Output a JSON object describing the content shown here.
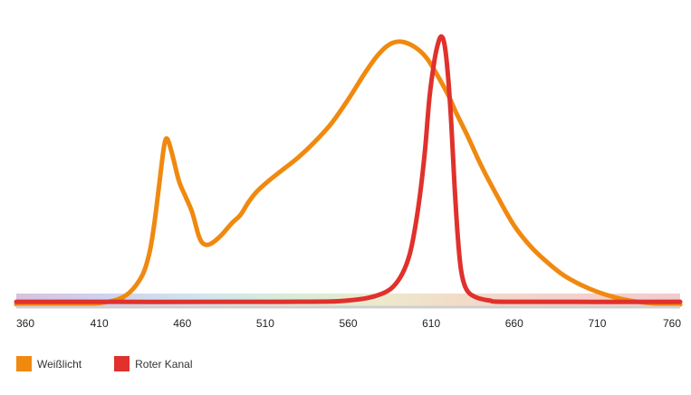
{
  "chart_data": {
    "type": "line",
    "xlabel": "",
    "ylabel": "",
    "xlim": [
      360,
      760
    ],
    "ylim": [
      0,
      1
    ],
    "x_ticks": [
      "360",
      "410",
      "460",
      "510",
      "560",
      "610",
      "660",
      "710",
      "760"
    ],
    "grid": false,
    "legend_position": "bottom-left",
    "spectrum_band": true,
    "series": [
      {
        "name": "Weißlicht",
        "color": "#F0890F",
        "points": [
          [
            360,
            0.0
          ],
          [
            390,
            0.0
          ],
          [
            410,
            0.005
          ],
          [
            425,
            0.03
          ],
          [
            435,
            0.1
          ],
          [
            440,
            0.19
          ],
          [
            443,
            0.3
          ],
          [
            446,
            0.45
          ],
          [
            449,
            0.6
          ],
          [
            451,
            0.63
          ],
          [
            454,
            0.57
          ],
          [
            458,
            0.47
          ],
          [
            462,
            0.41
          ],
          [
            466,
            0.35
          ],
          [
            470,
            0.26
          ],
          [
            473,
            0.23
          ],
          [
            477,
            0.23
          ],
          [
            483,
            0.26
          ],
          [
            490,
            0.31
          ],
          [
            495,
            0.34
          ],
          [
            500,
            0.39
          ],
          [
            505,
            0.43
          ],
          [
            512,
            0.47
          ],
          [
            520,
            0.51
          ],
          [
            530,
            0.56
          ],
          [
            540,
            0.62
          ],
          [
            550,
            0.69
          ],
          [
            560,
            0.78
          ],
          [
            570,
            0.88
          ],
          [
            578,
            0.95
          ],
          [
            585,
            0.99
          ],
          [
            592,
            1.0
          ],
          [
            600,
            0.98
          ],
          [
            607,
            0.94
          ],
          [
            613,
            0.88
          ],
          [
            620,
            0.8
          ],
          [
            625,
            0.73
          ],
          [
            632,
            0.64
          ],
          [
            640,
            0.53
          ],
          [
            650,
            0.41
          ],
          [
            660,
            0.3
          ],
          [
            670,
            0.22
          ],
          [
            680,
            0.16
          ],
          [
            690,
            0.11
          ],
          [
            700,
            0.075
          ],
          [
            710,
            0.048
          ],
          [
            720,
            0.028
          ],
          [
            730,
            0.014
          ],
          [
            740,
            0.006
          ],
          [
            750,
            0.002
          ],
          [
            760,
            0.0
          ]
        ]
      },
      {
        "name": "Roter Kanal",
        "color": "#E0312C",
        "points": [
          [
            360,
            0.01
          ],
          [
            520,
            0.01
          ],
          [
            560,
            0.015
          ],
          [
            580,
            0.04
          ],
          [
            590,
            0.09
          ],
          [
            597,
            0.19
          ],
          [
            602,
            0.36
          ],
          [
            606,
            0.57
          ],
          [
            609,
            0.79
          ],
          [
            612,
            0.93
          ],
          [
            614,
            0.99
          ],
          [
            616,
            1.02
          ],
          [
            618,
            0.99
          ],
          [
            620,
            0.88
          ],
          [
            622,
            0.7
          ],
          [
            624,
            0.46
          ],
          [
            626,
            0.26
          ],
          [
            628,
            0.13
          ],
          [
            631,
            0.06
          ],
          [
            636,
            0.03
          ],
          [
            645,
            0.015
          ],
          [
            660,
            0.01
          ],
          [
            760,
            0.01
          ]
        ]
      }
    ]
  }
}
